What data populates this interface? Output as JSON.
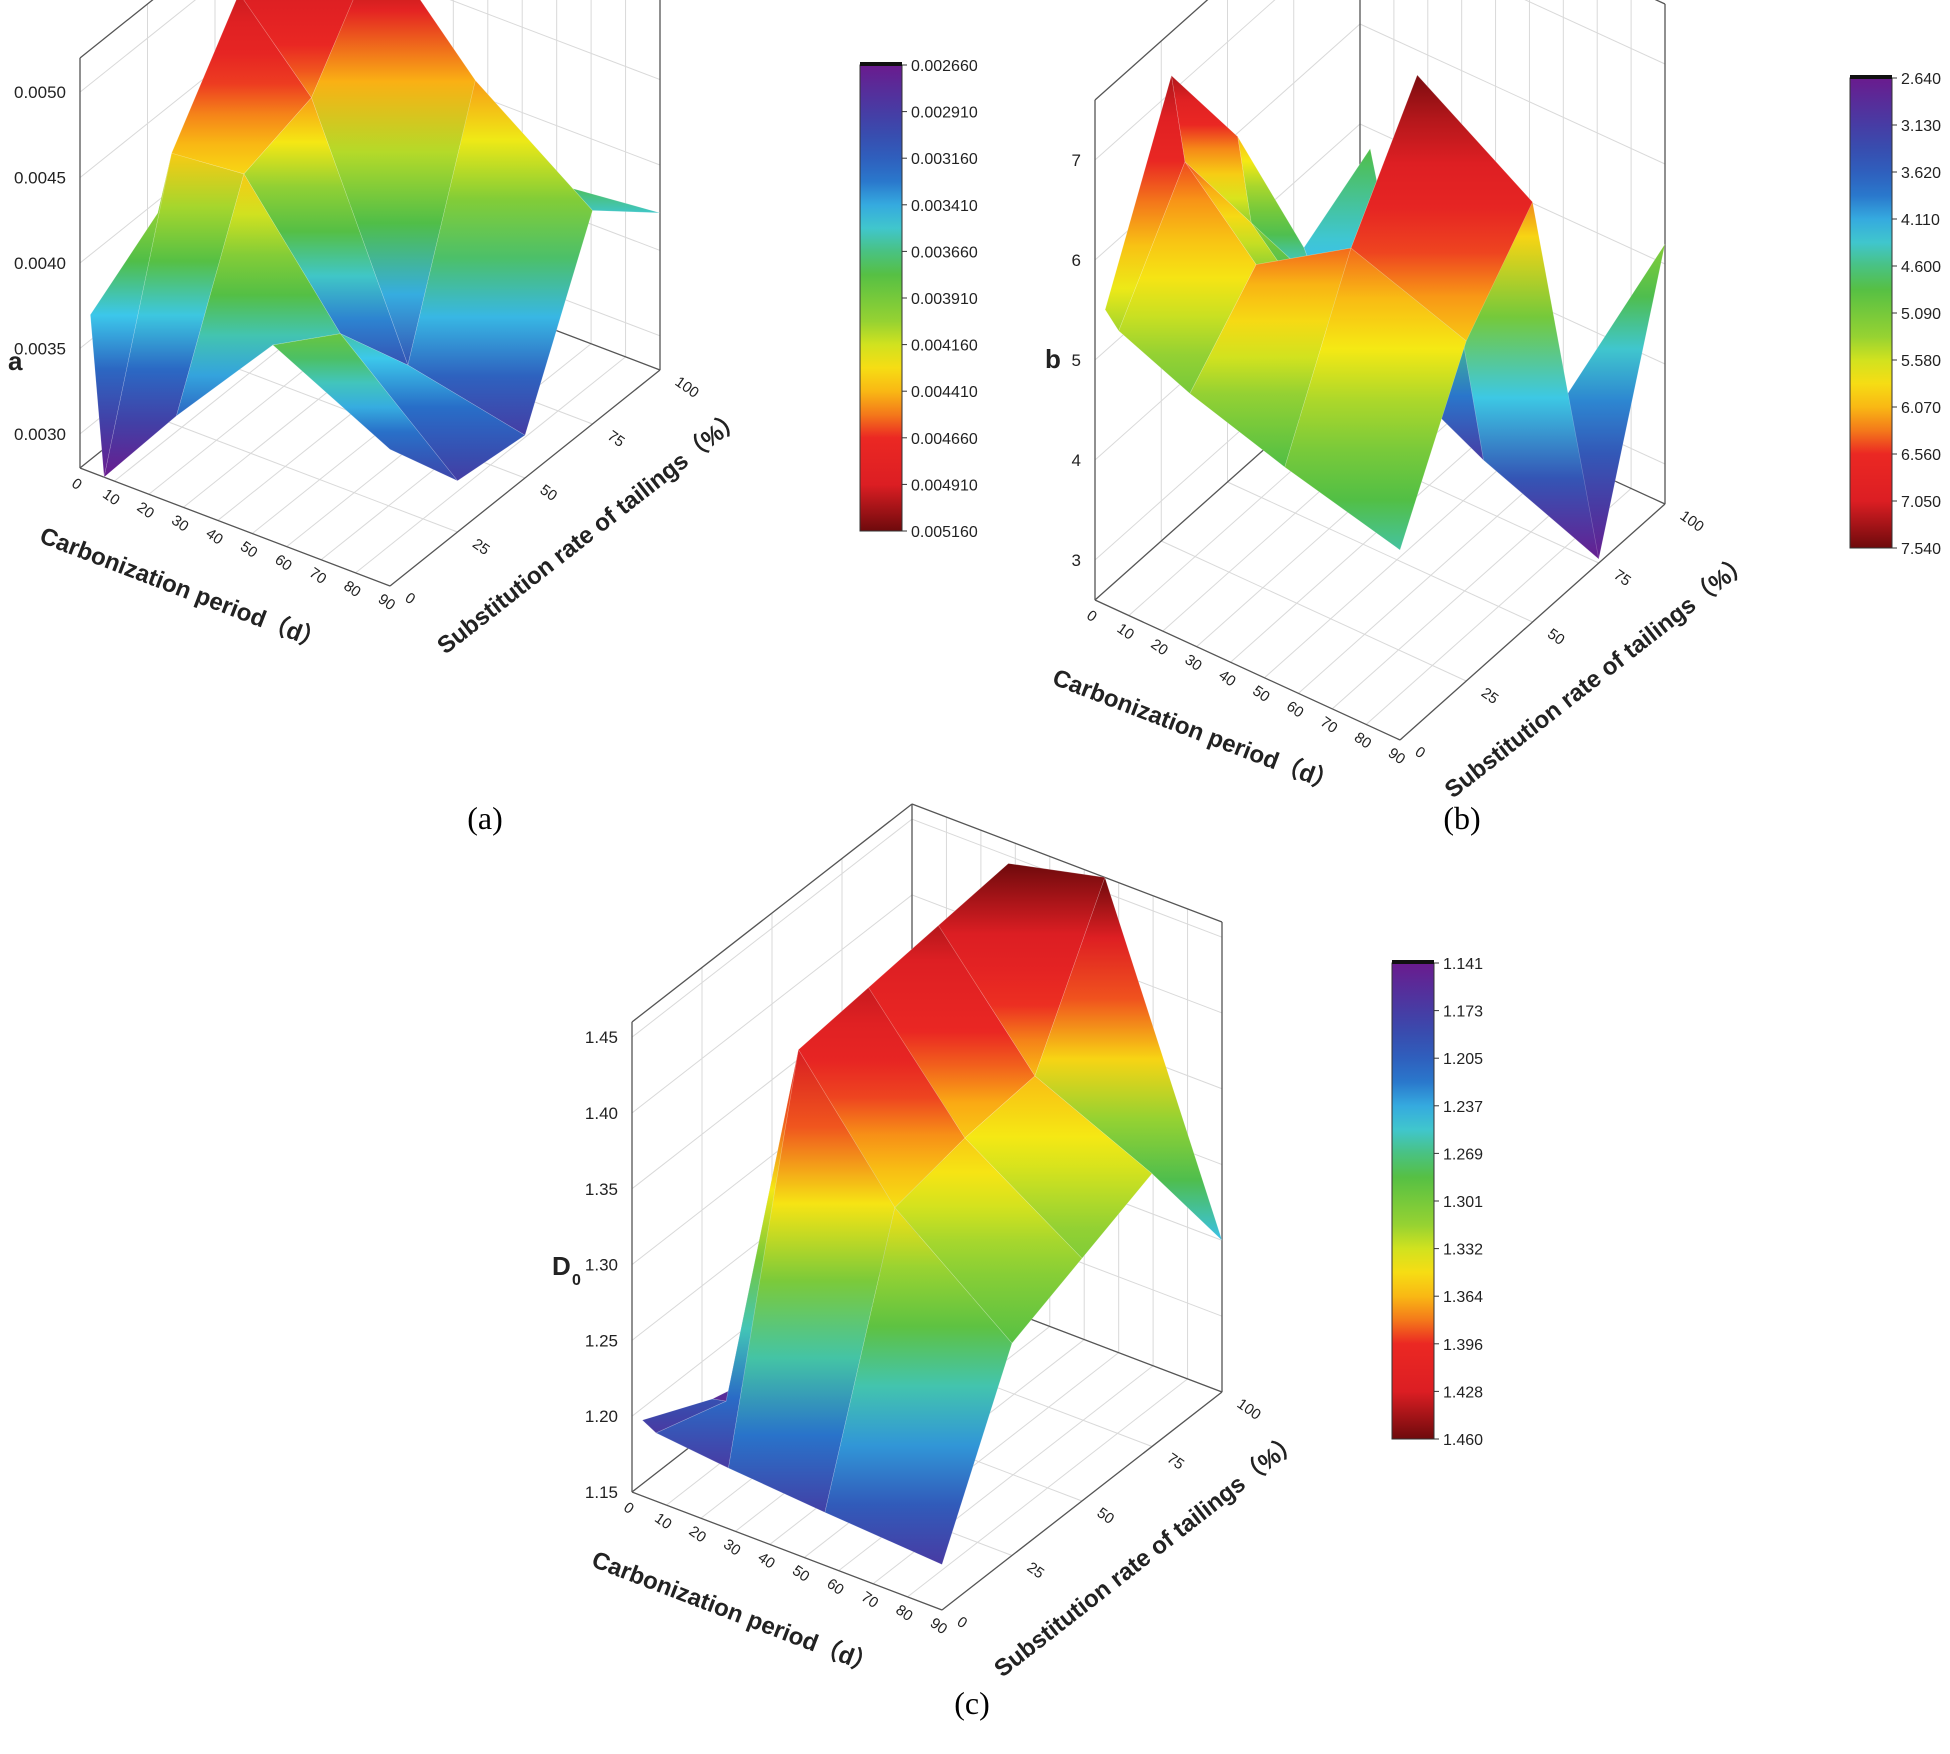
{
  "chart_data": [
    {
      "panel": "a",
      "type": "surface3d",
      "caption": "(a)",
      "zlabel": "a",
      "xlabel": "Carbonization period（d）",
      "ylabel": "Substitution rate of tailings（%）",
      "x_ticks": [
        "0",
        "10",
        "20",
        "30",
        "40",
        "50",
        "60",
        "70",
        "80",
        "90"
      ],
      "y_ticks": [
        "0",
        "25",
        "50",
        "75",
        "100"
      ],
      "z_ticks": [
        "0.0030",
        "0.0035",
        "0.0040",
        "0.0045",
        "0.0050"
      ],
      "zlim": [
        0.0028,
        0.0052
      ],
      "x": [
        3,
        7,
        28,
        56,
        90
      ],
      "y": [
        0,
        25,
        50,
        75,
        100
      ],
      "z": [
        [
          0.00372,
          0.004,
          0.0042,
          0.00455,
          0.00396
        ],
        [
          0.0028,
          0.00438,
          0.005,
          0.005,
          0.00408
        ],
        [
          0.00332,
          0.00442,
          0.00455,
          0.00516,
          0.00368
        ],
        [
          0.00395,
          0.0037,
          0.0032,
          0.00455,
          0.00365
        ],
        [
          0.0036,
          0.0031,
          0.00305,
          0.00405,
          0.00372
        ]
      ],
      "colorbar": [
        "0.002660",
        "0.002910",
        "0.003160",
        "0.003410",
        "0.003660",
        "0.003910",
        "0.004160",
        "0.004410",
        "0.004660",
        "0.004910",
        "0.005160"
      ],
      "colors": {
        "low": "#6a1b8e",
        "high": "#6d0b0b"
      }
    },
    {
      "panel": "b",
      "type": "surface3d",
      "caption": "(b)",
      "zlabel": "b",
      "xlabel": "Carbonization period（d）",
      "ylabel": "Substitution rate of tailings（%）",
      "x_ticks": [
        "0",
        "10",
        "20",
        "30",
        "40",
        "50",
        "60",
        "70",
        "80",
        "90"
      ],
      "y_ticks": [
        "0",
        "25",
        "50",
        "75",
        "100"
      ],
      "z_ticks": [
        "3",
        "4",
        "5",
        "6",
        "7"
      ],
      "zlim": [
        2.6,
        7.6
      ],
      "x": [
        3,
        7,
        28,
        56,
        90
      ],
      "y": [
        0,
        25,
        50,
        75,
        100
      ],
      "z": [
        [
          5.55,
          7.3,
          6.1,
          4.4,
          4.8
        ],
        [
          5.4,
          6.5,
          5.3,
          4.1,
          4.2
        ],
        [
          5.1,
          5.8,
          4.6,
          3.6,
          3.7
        ],
        [
          4.8,
          6.4,
          7.54,
          3.1,
          2.9
        ],
        [
          4.5,
          6.0,
          6.8,
          2.64,
          5.2
        ]
      ],
      "colorbar": [
        "2.640",
        "3.130",
        "3.620",
        "4.110",
        "4.600",
        "5.090",
        "5.580",
        "6.070",
        "6.560",
        "7.050",
        "7.540"
      ],
      "colors": {
        "low": "#6a1b8e",
        "high": "#6d0b0b"
      }
    },
    {
      "panel": "c",
      "type": "surface3d",
      "caption": "(c)",
      "zlabel": "D",
      "zlabel_sub": "0",
      "xlabel": "Carbonization period（d）",
      "ylabel": "Substitution rate of tailings（%）",
      "x_ticks": [
        "0",
        "10",
        "20",
        "30",
        "40",
        "50",
        "60",
        "70",
        "80",
        "90"
      ],
      "y_ticks": [
        "0",
        "25",
        "50",
        "75",
        "100"
      ],
      "z_ticks": [
        "1.15",
        "1.20",
        "1.25",
        "1.30",
        "1.35",
        "1.40",
        "1.45"
      ],
      "zlim": [
        1.15,
        1.46
      ],
      "x": [
        3,
        7,
        28,
        56,
        90
      ],
      "y": [
        0,
        25,
        50,
        75,
        100
      ],
      "z": [
        [
          1.2,
          1.178,
          1.165,
          1.17,
          1.18
        ],
        [
          1.195,
          1.18,
          1.19,
          1.2,
          1.21
        ],
        [
          1.19,
          1.43,
          1.435,
          1.44,
          1.445
        ],
        [
          1.185,
          1.35,
          1.36,
          1.365,
          1.46
        ],
        [
          1.18,
          1.29,
          1.31,
          1.33,
          1.25
        ]
      ],
      "colorbar": [
        "1.141",
        "1.173",
        "1.205",
        "1.237",
        "1.269",
        "1.301",
        "1.332",
        "1.364",
        "1.396",
        "1.428",
        "1.460"
      ],
      "colors": {
        "low": "#6a1b8e",
        "high": "#6d0b0b"
      }
    }
  ]
}
